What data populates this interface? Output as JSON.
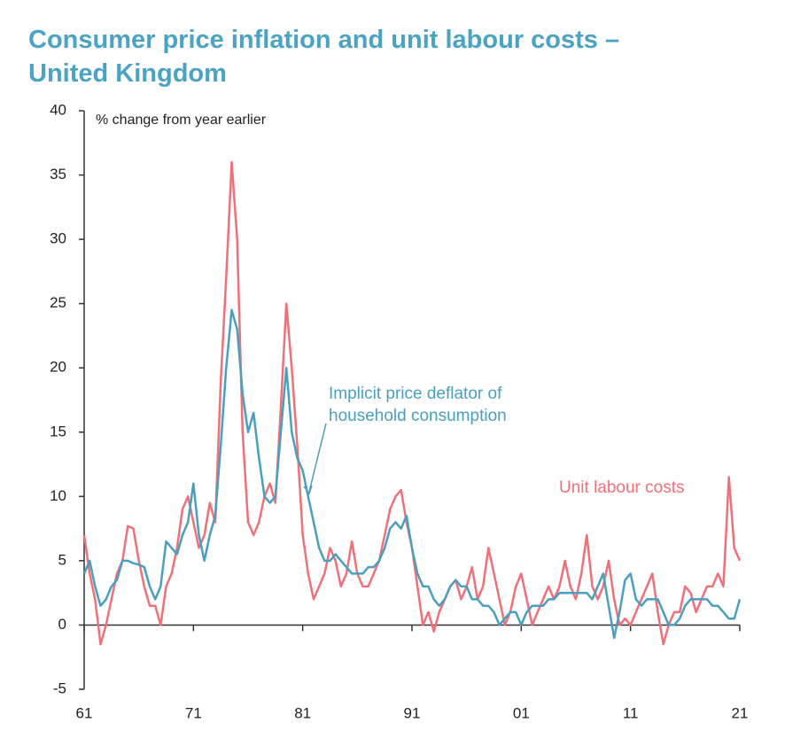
{
  "chart_data": {
    "type": "line",
    "title": "Consumer price inflation and unit labour costs – United Kingdom",
    "y_label": "% change from year earlier",
    "x": [
      1961,
      1961.5,
      1962,
      1962.5,
      1963,
      1963.5,
      1964,
      1964.5,
      1965,
      1965.5,
      1966,
      1966.5,
      1967,
      1967.5,
      1968,
      1968.5,
      1969,
      1969.5,
      1970,
      1970.5,
      1971,
      1971.5,
      1972,
      1972.5,
      1973,
      1973.5,
      1974,
      1974.5,
      1975,
      1975.5,
      1976,
      1976.5,
      1977,
      1977.5,
      1978,
      1978.5,
      1979,
      1979.5,
      1980,
      1980.5,
      1981,
      1981.5,
      1982,
      1982.5,
      1983,
      1983.5,
      1984,
      1984.5,
      1985,
      1985.5,
      1986,
      1986.5,
      1987,
      1987.5,
      1988,
      1988.5,
      1989,
      1989.5,
      1990,
      1990.5,
      1991,
      1991.5,
      1992,
      1992.5,
      1993,
      1993.5,
      1994,
      1994.5,
      1995,
      1995.5,
      1996,
      1996.5,
      1997,
      1997.5,
      1998,
      1998.5,
      1999,
      1999.5,
      2000,
      2000.5,
      2001,
      2001.5,
      2002,
      2002.5,
      2003,
      2003.5,
      2004,
      2004.5,
      2005,
      2005.5,
      2006,
      2006.5,
      2007,
      2007.5,
      2008,
      2008.5,
      2009,
      2009.5,
      2010,
      2010.5,
      2011,
      2011.5,
      2012,
      2012.5,
      2013,
      2013.5,
      2014,
      2014.5,
      2015,
      2015.5,
      2016,
      2016.5,
      2017,
      2017.5,
      2018,
      2018.5,
      2019,
      2019.5,
      2020,
      2020.5,
      2021
    ],
    "series": [
      {
        "name": "Unit labour costs",
        "color": "#f0707a",
        "values": [
          7,
          4,
          2,
          -1.5,
          0,
          2,
          4,
          5,
          7.7,
          7.5,
          5,
          3,
          1.5,
          1.5,
          0,
          3,
          4,
          6,
          9,
          10,
          8,
          6,
          7,
          9.5,
          8,
          19,
          27,
          36,
          30,
          15,
          8,
          7,
          8,
          10,
          11,
          9.5,
          17,
          25,
          20,
          14,
          7,
          4,
          2,
          3,
          4,
          6,
          5,
          3,
          4,
          6.5,
          4,
          3,
          3,
          4,
          5,
          7,
          9,
          10,
          10.5,
          8,
          6,
          3,
          0,
          1,
          -0.5,
          1,
          2,
          3,
          3.5,
          2,
          3,
          4.5,
          2,
          3,
          6,
          4,
          2,
          0,
          1,
          3,
          4,
          2,
          0,
          1,
          2,
          3,
          2,
          3,
          5,
          3,
          2,
          4,
          7,
          3,
          2,
          3,
          5,
          2,
          0,
          0.5,
          0,
          1,
          2,
          3,
          4,
          1,
          -1.5,
          0,
          1,
          1,
          3,
          2.5,
          1,
          2,
          3,
          3,
          4,
          3,
          11.5,
          6,
          5
        ]
      },
      {
        "name": "Implicit price deflator of household consumption",
        "color": "#4a9fbe",
        "values": [
          4,
          5,
          3,
          1.5,
          2,
          3,
          3.5,
          5,
          5,
          4.8,
          4.7,
          4.5,
          3,
          2,
          3,
          6.5,
          6,
          5.5,
          7,
          8,
          11,
          7,
          5,
          7,
          8.5,
          14,
          20,
          24.5,
          23,
          18,
          15,
          16.5,
          13,
          10,
          9.5,
          10,
          15,
          20,
          15,
          13,
          12,
          10,
          8,
          6,
          5,
          5,
          5.5,
          5,
          4.5,
          4,
          4,
          4,
          4.5,
          4.5,
          5,
          6,
          7.5,
          8,
          7.5,
          8.5,
          6,
          4,
          3,
          3,
          2,
          1.5,
          2,
          3,
          3.5,
          3,
          3,
          2,
          2,
          1.5,
          1.5,
          1,
          0,
          0.5,
          1,
          1,
          0,
          1,
          1.5,
          1.5,
          1.5,
          2,
          2,
          2.5,
          2.5,
          2.5,
          2.5,
          2.5,
          2.5,
          2,
          3,
          4,
          1.5,
          -1,
          1,
          3.5,
          4,
          2,
          1.5,
          2,
          2,
          2,
          1,
          0,
          0,
          0.5,
          1.5,
          2,
          2,
          2,
          2,
          1.5,
          1.5,
          1,
          0.5,
          0.5,
          2
        ]
      }
    ],
    "xlim": [
      1961,
      2021
    ],
    "xticks": [
      {
        "value": 1961,
        "label": "61"
      },
      {
        "value": 1971,
        "label": "71"
      },
      {
        "value": 1981,
        "label": "81"
      },
      {
        "value": 1991,
        "label": "91"
      },
      {
        "value": 2001,
        "label": "01"
      },
      {
        "value": 2011,
        "label": "11"
      },
      {
        "value": 2021,
        "label": "21"
      }
    ],
    "ylim": [
      -5,
      40
    ],
    "yticks": [
      -5,
      0,
      5,
      10,
      15,
      20,
      25,
      30,
      35,
      40
    ],
    "grid": false
  }
}
